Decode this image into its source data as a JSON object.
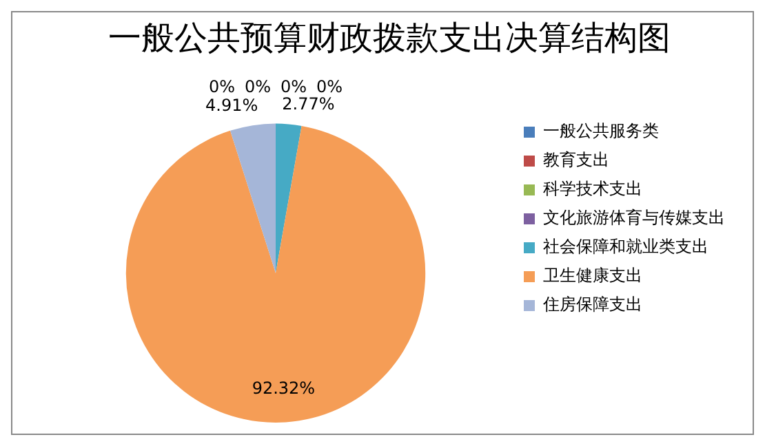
{
  "chart_data": {
    "type": "pie",
    "title": "一般公共预算财政拨款支出决算结构图",
    "categories": [
      "一般公共服务类",
      "教育支出",
      "科学技术支出",
      "文化旅游体育与传媒支出",
      "社会保障和就业类支出",
      "卫生健康支出",
      "住房保障支出"
    ],
    "values": [
      0,
      0,
      0,
      0,
      2.77,
      92.32,
      4.91
    ],
    "value_labels": [
      "0%",
      "0%",
      "0%",
      "0%",
      "2.77%",
      "92.32%",
      "4.91%"
    ],
    "colors": [
      "#4a7ebb",
      "#be4b48",
      "#98b954",
      "#7d60a0",
      "#46aac5",
      "#f59d56",
      "#a5b6d8"
    ],
    "legend": "right"
  }
}
